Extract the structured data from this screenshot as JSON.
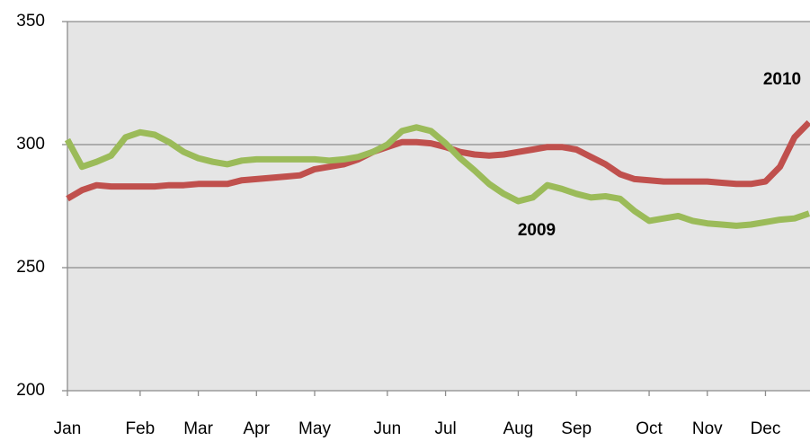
{
  "chart_data": {
    "type": "line",
    "categories": [
      "Jan",
      null,
      null,
      null,
      null,
      "Feb",
      null,
      null,
      null,
      "Mar",
      null,
      null,
      null,
      "Apr",
      null,
      null,
      null,
      "May",
      null,
      null,
      null,
      null,
      "Jun",
      null,
      null,
      null,
      "Jul",
      null,
      null,
      null,
      null,
      "Aug",
      null,
      null,
      null,
      "Sep",
      null,
      null,
      null,
      null,
      "Oct",
      null,
      null,
      null,
      "Nov",
      null,
      null,
      null,
      "Dec",
      null,
      null,
      null
    ],
    "series": [
      {
        "name": "2010",
        "color": "#c0504d",
        "values": [
          278,
          281.5,
          283.5,
          283,
          283,
          283,
          283,
          283.5,
          283.5,
          284,
          284,
          284,
          285.5,
          286,
          286.5,
          287,
          287.5,
          290,
          291,
          292,
          294,
          297,
          299,
          301,
          301,
          300.5,
          299,
          297,
          296,
          295.5,
          296,
          297,
          298,
          299,
          299,
          298,
          295,
          292,
          288,
          286,
          285.5,
          285,
          285,
          285,
          285,
          284.5,
          284,
          284,
          285,
          291,
          303,
          309
        ]
      },
      {
        "name": "2009",
        "color": "#9bbb59",
        "values": [
          302,
          291,
          293,
          295.5,
          303,
          305,
          304,
          301,
          297,
          294.5,
          293,
          292,
          293.5,
          294,
          294,
          294,
          294,
          294,
          293.5,
          294,
          295,
          297,
          300,
          305.5,
          307,
          305.5,
          300.5,
          294.5,
          289.5,
          284,
          280,
          277,
          278.5,
          283.5,
          282,
          280,
          278.5,
          279,
          278,
          273,
          269,
          270,
          271,
          269,
          268,
          267.5,
          267,
          267.5,
          268.5,
          269.5,
          270,
          272
        ]
      }
    ],
    "ylim": [
      200,
      350
    ],
    "yticks": [
      200,
      250,
      300,
      350
    ],
    "grid": true
  }
}
